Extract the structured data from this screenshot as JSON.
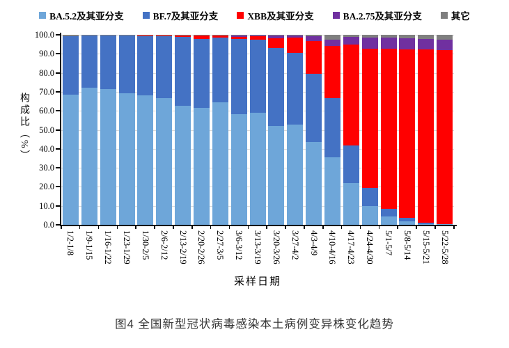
{
  "caption": "图4 全国新型冠状病毒感染本土病例变异株变化趋势",
  "chart_data": {
    "type": "bar",
    "stacked": true,
    "title": "",
    "xlabel": "采样日期",
    "ylabel": "构成比（%）",
    "ylim": [
      0,
      100
    ],
    "grid": true,
    "legend_position": "top",
    "ytick_labels": [
      "0.0",
      "10.0",
      "20.0",
      "30.0",
      "40.0",
      "50.0",
      "60.0",
      "70.0",
      "80.0",
      "90.0",
      "100.0"
    ],
    "categories": [
      "1/2-1/8",
      "1/9-1/15",
      "1/16-1/22",
      "1/23-1/29",
      "1/30-2/5",
      "2/6-2/12",
      "2/13-2/19",
      "2/20-2/26",
      "2/27-3/5",
      "3/6-3/12",
      "3/13-3/19",
      "3/20-3/26",
      "3/27-4/2",
      "4/3-4/9",
      "4/10-4/16",
      "4/17-4/23",
      "4/24-4/30",
      "5/1-5/7",
      "5/8-5/14",
      "5/15-5/21",
      "5/22-5/28"
    ],
    "series": [
      {
        "name": "BA.5.2及其亚分支",
        "color": "#6EA6D9",
        "values": [
          68.6,
          72.2,
          71.3,
          69.1,
          68.1,
          66.8,
          62.8,
          61.7,
          64.3,
          58.2,
          58.9,
          52.1,
          52.7,
          43.6,
          35.7,
          21.9,
          9.8,
          4.5,
          1.7,
          0.4,
          0.2
        ]
      },
      {
        "name": "BF.7及其亚分支",
        "color": "#4472C4",
        "values": [
          30.7,
          27.3,
          28.2,
          30.4,
          31.3,
          32.3,
          36.0,
          36.2,
          34.2,
          39.5,
          38.4,
          41.1,
          37.9,
          36.0,
          31.1,
          19.9,
          9.7,
          3.9,
          1.8,
          0.6,
          0.3
        ]
      },
      {
        "name": "XBB及其亚分支",
        "color": "#FF0000",
        "values": [
          0.0,
          0.0,
          0.1,
          0.1,
          0.2,
          0.6,
          0.9,
          1.7,
          1.0,
          1.3,
          1.8,
          4.9,
          7.9,
          17.1,
          27.5,
          53.1,
          73.0,
          84.2,
          88.9,
          91.2,
          91.3
        ]
      },
      {
        "name": "BA.2.75及其亚分支",
        "color": "#7030A0",
        "values": [
          0.1,
          0.1,
          0.1,
          0.1,
          0.1,
          0.1,
          0.1,
          0.2,
          0.2,
          0.7,
          0.5,
          1.5,
          1.0,
          2.4,
          3.1,
          3.9,
          6.0,
          5.9,
          5.9,
          5.7,
          5.5
        ]
      },
      {
        "name": "其它",
        "color": "#7F7F7F",
        "values": [
          0.6,
          0.4,
          0.3,
          0.3,
          0.3,
          0.2,
          0.2,
          0.2,
          0.3,
          0.3,
          0.4,
          0.4,
          0.5,
          0.9,
          2.6,
          1.2,
          1.5,
          1.5,
          1.7,
          2.1,
          2.7
        ]
      }
    ]
  }
}
